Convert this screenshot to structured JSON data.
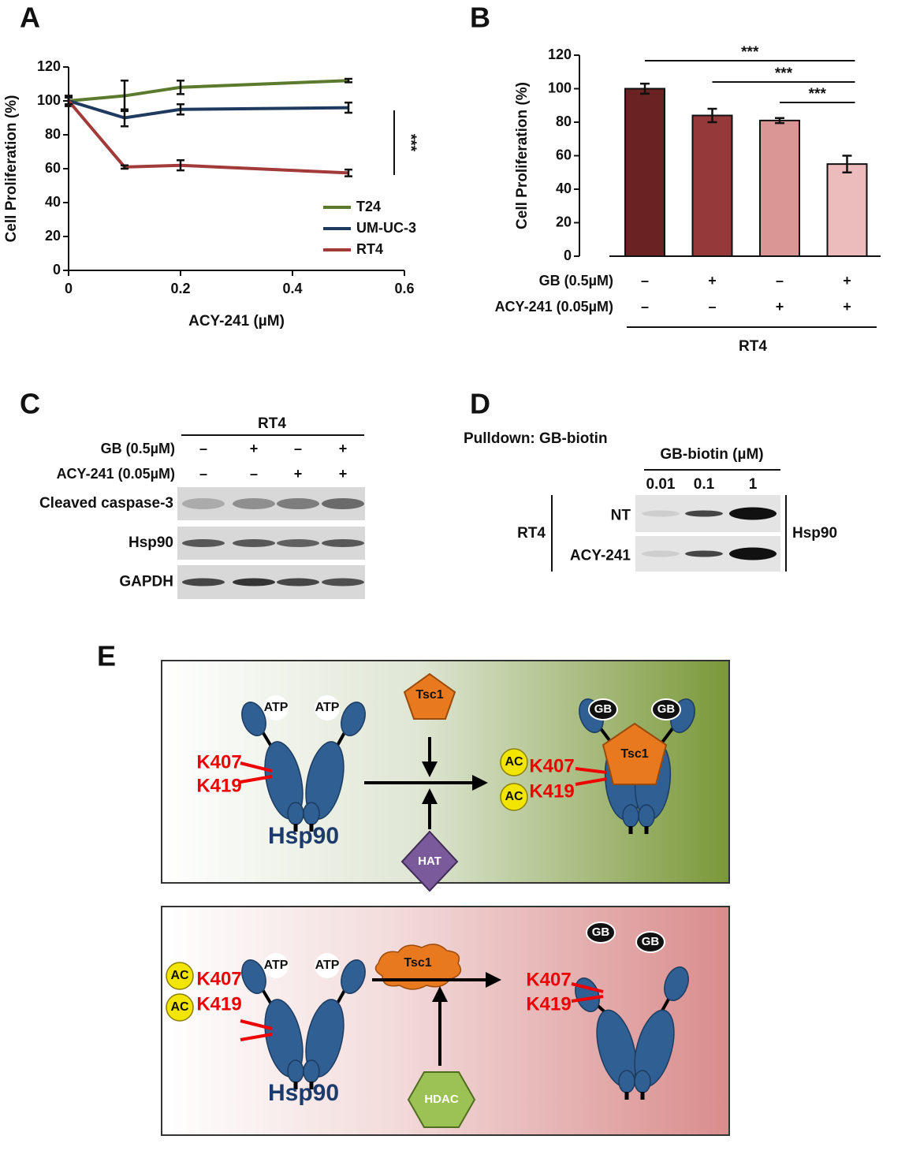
{
  "chart_data": [
    {
      "type": "line",
      "label": "A",
      "ylabel": "Cell Proliferation (%)",
      "xlabel": "ACY-241 (µM)",
      "x": [
        0,
        0.1,
        0.2,
        0.5
      ],
      "xlim": [
        0,
        0.6
      ],
      "xticks": [
        0,
        0.2,
        0.4,
        0.6
      ],
      "ylim": [
        0,
        120
      ],
      "yticks": [
        0,
        20,
        40,
        60,
        80,
        100,
        120
      ],
      "legend": "lower right",
      "annotation": "***",
      "series": [
        {
          "name": "T24",
          "color": "#5b7a2e",
          "values": [
            100,
            103,
            108,
            112
          ],
          "errors": [
            3,
            9,
            4,
            1
          ]
        },
        {
          "name": "UM-UC-3",
          "color": "#1f3a5f",
          "values": [
            100,
            90,
            95,
            96
          ],
          "errors": [
            3,
            5,
            3,
            3
          ]
        },
        {
          "name": "RT4",
          "color": "#a33a3a",
          "values": [
            100,
            61,
            62,
            57.5
          ],
          "errors": [
            2,
            1,
            3,
            2
          ]
        }
      ]
    },
    {
      "type": "bar",
      "label": "B",
      "ylabel": "Cell Proliferation (%)",
      "categories": [
        null,
        null,
        null,
        null
      ],
      "values": [
        100,
        84,
        81,
        55
      ],
      "errors": [
        3,
        4,
        1.5,
        5
      ],
      "colors": [
        "#6b2222",
        "#96393a",
        "#d99694",
        "#ebbcbb"
      ],
      "ylim": [
        0,
        120
      ],
      "yticks": [
        0,
        20,
        40,
        60,
        80,
        100,
        120
      ],
      "significance": [
        "***",
        "***",
        "***"
      ],
      "conditions": [
        {
          "label": "GB (0.5µM)",
          "cells": [
            "–",
            "+",
            "–",
            "+"
          ]
        },
        {
          "label": "ACY-241 (0.05µM)",
          "cells": [
            "–",
            "–",
            "+",
            "+"
          ]
        }
      ],
      "group": "RT4"
    }
  ],
  "blot_c": {
    "label": "C",
    "group": "RT4",
    "conditions": [
      {
        "label": "GB (0.5µM)",
        "cells": [
          "–",
          "+",
          "–",
          "+"
        ]
      },
      {
        "label": "ACY-241 (0.05µM)",
        "cells": [
          "–",
          "–",
          "+",
          "+"
        ]
      }
    ],
    "bands": [
      "Cleaved caspase-3",
      "Hsp90",
      "GAPDH"
    ]
  },
  "blot_d": {
    "label": "D",
    "method": "Pulldown: GB-biotin",
    "dose_label": "GB-biotin (µM)",
    "doses": [
      0.01,
      0.1,
      1
    ],
    "group": "RT4",
    "rows": [
      "NT",
      "ACY-241"
    ],
    "target": "Hsp90"
  },
  "diagram_e": {
    "label": "E",
    "top": {
      "atp": [
        "ATP",
        "ATP"
      ],
      "sites": [
        "K407",
        "K419"
      ],
      "protein": "Hsp90",
      "client": "Tsc1",
      "enzyme": "HAT",
      "acetyl": [
        "AC",
        "AC"
      ],
      "sites_after": [
        "K407",
        "K419"
      ],
      "drug": [
        "GB",
        "GB"
      ],
      "client_after": "Tsc1"
    },
    "bottom": {
      "atp": [
        "ATP",
        "ATP"
      ],
      "acetyl": [
        "AC",
        "AC"
      ],
      "sites": [
        "K407",
        "K419"
      ],
      "protein": "Hsp90",
      "client": "Tsc1",
      "enzyme": "HDAC",
      "drug": [
        "GB",
        "GB"
      ],
      "sites_after": [
        "K407",
        "K419"
      ]
    }
  }
}
